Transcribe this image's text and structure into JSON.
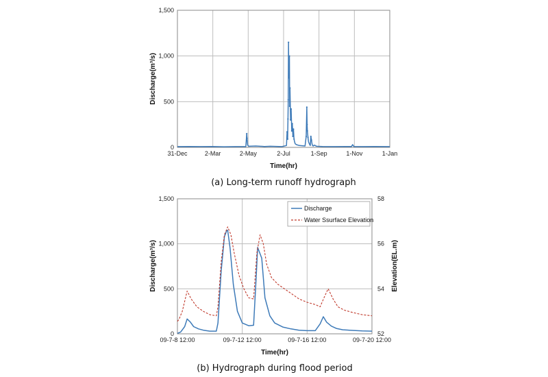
{
  "chart_data": [
    {
      "type": "line",
      "caption": "(a) Long-term runoff hydrograph",
      "xlabel": "Time(hr)",
      "ylabel": "Discharge(m³/s)",
      "xtick_labels": [
        "31-Dec",
        "2-Mar",
        "2-May",
        "2-Jul",
        "1-Sep",
        "1-Nov",
        "1-Jan"
      ],
      "xlim": [
        0,
        366
      ],
      "ylim": [
        0,
        1500
      ],
      "ytick_labels": [
        "0",
        "500",
        "1,000",
        "1,500"
      ],
      "yticks": [
        0,
        500,
        1000,
        1500
      ],
      "grid": true,
      "series": [
        {
          "color": "#3d7ab8",
          "x": [
            0,
            20,
            40,
            60,
            80,
            100,
            118,
            119.5,
            120,
            121,
            123,
            135,
            150,
            160,
            180,
            188,
            189,
            190,
            190.5,
            191,
            191.5,
            192,
            193,
            193.5,
            194,
            195,
            196,
            197,
            198,
            199,
            200,
            201,
            202,
            203,
            205,
            210,
            220,
            222,
            223,
            223.5,
            224,
            225,
            226,
            228,
            229,
            230,
            231,
            232,
            233,
            234,
            236,
            240,
            250,
            270,
            290,
            300,
            302,
            304,
            320,
            340,
            366
          ],
          "y": [
            8,
            10,
            8,
            9,
            7,
            8,
            10,
            150,
            100,
            25,
            12,
            15,
            10,
            12,
            8,
            20,
            170,
            90,
            310,
            520,
            1150,
            760,
            1000,
            450,
            650,
            300,
            420,
            180,
            260,
            120,
            200,
            90,
            60,
            40,
            30,
            20,
            15,
            120,
            440,
            250,
            180,
            110,
            60,
            30,
            20,
            120,
            80,
            40,
            20,
            15,
            25,
            12,
            10,
            8,
            10,
            10,
            30,
            10,
            8,
            10,
            8
          ]
        }
      ]
    },
    {
      "type": "line",
      "caption": "(b) Hydrograph during flood period",
      "xlabel": "Time(hr)",
      "ylabel": "Discharge(m³/s)",
      "y2label": "Elevation(EL.m)",
      "xtick_labels": [
        "09-7-8 12:00",
        "09-7-12 12:00",
        "09-7-16 12:00",
        "09-7-20 12:00"
      ],
      "xlim": [
        0,
        12
      ],
      "ylim": [
        0,
        1500
      ],
      "ytick_labels": [
        "0",
        "500",
        "1,000",
        "1,500"
      ],
      "yticks": [
        0,
        500,
        1000,
        1500
      ],
      "y2lim": [
        52,
        58
      ],
      "y2tick_labels": [
        "52",
        "54",
        "56",
        "58"
      ],
      "y2ticks": [
        52,
        54,
        56,
        58
      ],
      "grid": true,
      "legend_placement": "top-right",
      "series": [
        {
          "name": "Discharge",
          "color": "#3d7ab8",
          "dash": "solid",
          "axis": "left",
          "x": [
            0,
            0.2,
            0.45,
            0.6,
            0.8,
            1.0,
            1.3,
            1.6,
            2.0,
            2.4,
            2.5,
            2.7,
            2.9,
            3.05,
            3.1,
            3.25,
            3.45,
            3.7,
            4.0,
            4.4,
            4.7,
            4.85,
            4.95,
            5.2,
            5.4,
            5.7,
            6.0,
            6.5,
            7.0,
            7.5,
            8.0,
            8.5,
            8.8,
            9.0,
            9.2,
            9.5,
            9.8,
            10.2,
            10.8,
            11.4,
            12.0
          ],
          "y": [
            5,
            20,
            80,
            165,
            130,
            80,
            55,
            40,
            30,
            30,
            120,
            700,
            1080,
            1150,
            1150,
            950,
            550,
            250,
            120,
            90,
            95,
            600,
            960,
            840,
            400,
            200,
            120,
            75,
            55,
            40,
            35,
            35,
            110,
            190,
            130,
            85,
            60,
            45,
            38,
            32,
            30
          ]
        },
        {
          "name": "Water Ssurface Elevation",
          "color": "#c0392b",
          "dash": "dashed",
          "axis": "right",
          "x": [
            0,
            0.1,
            0.3,
            0.6,
            0.85,
            1.2,
            1.6,
            2.0,
            2.4,
            2.5,
            2.7,
            2.9,
            3.1,
            3.3,
            3.5,
            3.8,
            4.1,
            4.4,
            4.7,
            4.9,
            5.1,
            5.3,
            5.5,
            5.8,
            6.2,
            6.6,
            7.0,
            7.5,
            8.0,
            8.5,
            8.8,
            9.1,
            9.3,
            9.6,
            9.9,
            10.3,
            10.8,
            11.4,
            12.0
          ],
          "y": [
            52.55,
            52.65,
            53.0,
            53.9,
            53.55,
            53.2,
            53.0,
            52.85,
            52.8,
            53.2,
            55.2,
            56.4,
            56.75,
            56.4,
            55.6,
            54.6,
            54.0,
            53.6,
            53.55,
            55.6,
            56.4,
            56.0,
            55.1,
            54.5,
            54.2,
            54.0,
            53.8,
            53.55,
            53.4,
            53.3,
            53.2,
            53.7,
            54.0,
            53.55,
            53.2,
            53.05,
            52.95,
            52.85,
            52.8
          ]
        }
      ]
    }
  ]
}
